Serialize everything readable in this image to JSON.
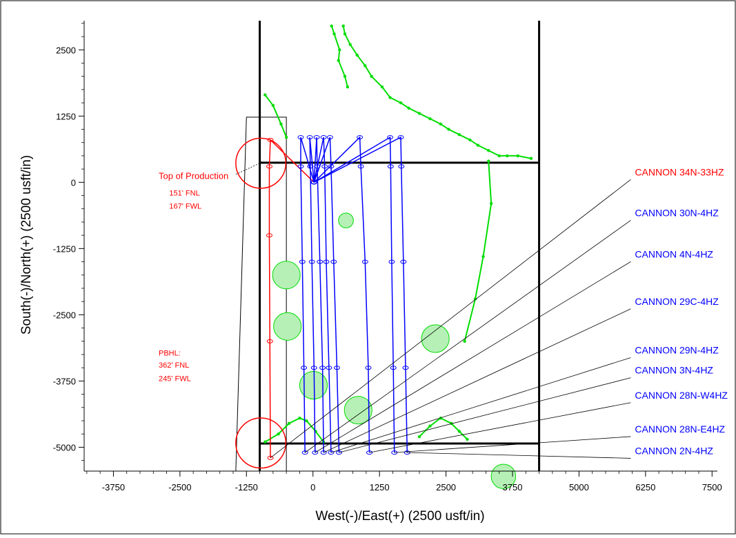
{
  "chart_data": {
    "type": "scatter",
    "title": "",
    "xlabel": "West(-)/East(+) (2500 usft/in)",
    "ylabel": "South(-)/North(+) (2500 usft/in)",
    "xlim": [
      -4300,
      7600
    ],
    "ylim": [
      -5450,
      3050
    ],
    "x_ticks": [
      -3750,
      -2500,
      -1250,
      0,
      1250,
      2500,
      3750,
      5000,
      6250,
      7500
    ],
    "y_ticks": [
      2500,
      1250,
      0,
      -1250,
      -2500,
      -3750,
      -5000
    ],
    "x_tick_labels": [
      "-3750",
      "-2500",
      "-1250",
      "0",
      "1250",
      "2500",
      "3750",
      "5000",
      "6250",
      "7500"
    ],
    "y_tick_labels": [
      "2500",
      "1250",
      "0",
      "-1250",
      "-2500",
      "-3750",
      "-5000"
    ],
    "grid": false,
    "colors": {
      "subject": "#ff0000",
      "offset": "#0000ff",
      "other": "#00dd00",
      "boundary": "#000000"
    },
    "section_lines": {
      "vertical": [
        {
          "x": -1000,
          "y": [
            -5450,
            3050
          ]
        },
        {
          "x": 4250,
          "y": [
            -5450,
            3050
          ]
        }
      ],
      "horizontal": [
        {
          "x": [
            -1000,
            4250
          ],
          "y": 370
        },
        {
          "x": [
            -1000,
            4250
          ],
          "y": -4930
        }
      ]
    },
    "lease_outline": [
      [
        -1450,
        -5450
      ],
      [
        -1250,
        1230
      ],
      [
        -500,
        1230
      ],
      [
        -500,
        -5450
      ]
    ],
    "series": [
      {
        "name": "CANNON 34N-33HZ",
        "color": "#ff0000",
        "label_at": [
          6050,
          130
        ],
        "x": [
          20,
          -800,
          -820,
          -820,
          -810,
          -800
        ],
        "y": [
          0,
          800,
          300,
          -1000,
          -3000,
          -5200
        ]
      },
      {
        "name": "CANNON 30N-4HZ",
        "color": "#0000ff",
        "label_at": [
          6050,
          -640
        ],
        "x": [
          20,
          -230,
          -230,
          -200,
          -170,
          -150
        ],
        "y": [
          0,
          850,
          300,
          -1500,
          -3500,
          -5100
        ]
      },
      {
        "name": "CANNON 4N-4HZ",
        "color": "#0000ff",
        "label_at": [
          6050,
          -1420
        ],
        "x": [
          20,
          -60,
          -50,
          -20,
          20,
          40
        ],
        "y": [
          0,
          850,
          300,
          -1500,
          -3500,
          -5100
        ]
      },
      {
        "name": "CANNON 29C-4HZ",
        "color": "#0000ff",
        "label_at": [
          6050,
          -2310
        ],
        "x": [
          20,
          70,
          80,
          130,
          180,
          200
        ],
        "y": [
          0,
          850,
          300,
          -1500,
          -3500,
          -5100
        ]
      },
      {
        "name": "CANNON 29N-4HZ",
        "color": "#0000ff",
        "label_at": [
          6050,
          -3230
        ],
        "x": [
          20,
          200,
          220,
          250,
          300,
          340
        ],
        "y": [
          0,
          850,
          300,
          -1500,
          -3500,
          -5100
        ]
      },
      {
        "name": "CANNON 3N-4HZ",
        "color": "#0000ff",
        "label_at": [
          6050,
          -3610
        ],
        "x": [
          20,
          320,
          340,
          390,
          450,
          490
        ],
        "y": [
          0,
          850,
          300,
          -1500,
          -3500,
          -5100
        ]
      },
      {
        "name": "CANNON 28N-W4HZ",
        "color": "#0000ff",
        "label_at": [
          6050,
          -4080
        ],
        "x": [
          20,
          880,
          900,
          980,
          1040,
          1060
        ],
        "y": [
          0,
          850,
          300,
          -1500,
          -3500,
          -5100
        ]
      },
      {
        "name": "CANNON 28N-E4HZ",
        "color": "#0000ff",
        "label_at": [
          6050,
          -4720
        ],
        "x": [
          20,
          1450,
          1460,
          1480,
          1510,
          1530
        ],
        "y": [
          0,
          850,
          300,
          -1500,
          -3500,
          -5100
        ]
      },
      {
        "name": "CANNON 2N-4HZ",
        "color": "#0000ff",
        "label_at": [
          6050,
          -5130
        ],
        "x": [
          20,
          1650,
          1660,
          1700,
          1740,
          1770
        ],
        "y": [
          0,
          850,
          300,
          -1500,
          -3500,
          -5100
        ]
      }
    ],
    "offset_wells": [
      {
        "x": [
          350,
          400,
          500,
          480,
          600,
          650
        ],
        "y": [
          2950,
          2800,
          2500,
          2300,
          2000,
          1800
        ]
      },
      {
        "x": [
          570,
          600,
          700,
          830,
          980,
          1100,
          1300,
          1450,
          1650,
          1800,
          2000,
          2200,
          2400,
          2550,
          2750,
          2950,
          3100,
          3300,
          3500,
          3650,
          3850,
          4100
        ],
        "y": [
          2950,
          2800,
          2600,
          2400,
          2200,
          2000,
          1800,
          1600,
          1500,
          1400,
          1300,
          1200,
          1100,
          1000,
          900,
          800,
          700,
          600,
          500,
          500,
          500,
          450
        ]
      },
      {
        "x": [
          -900,
          -750,
          -600,
          -500
        ],
        "y": [
          1650,
          1450,
          1100,
          850
        ]
      },
      {
        "x": [
          3300,
          3350,
          3200,
          3050,
          2850
        ],
        "y": [
          400,
          -400,
          -1400,
          -2200,
          -3000
        ]
      },
      {
        "x": [
          -900,
          -650,
          -450,
          -250,
          -120,
          50,
          200
        ],
        "y": [
          -4900,
          -4750,
          -4550,
          -4450,
          -4500,
          -4700,
          -4900
        ]
      },
      {
        "x": [
          2000,
          2200,
          2400,
          2600,
          2750,
          2900
        ],
        "y": [
          -4800,
          -4600,
          -4450,
          -4550,
          -4700,
          -4850
        ]
      }
    ],
    "anti_collision_circles": [
      {
        "x": -500,
        "y": -1750,
        "r": 260
      },
      {
        "x": -480,
        "y": -2720,
        "r": 260
      },
      {
        "x": 850,
        "y": -4300,
        "r": 260
      },
      {
        "x": 10,
        "y": -3830,
        "r": 260
      },
      {
        "x": 2300,
        "y": -2950,
        "r": 260
      },
      {
        "x": 620,
        "y": -720,
        "r": 140
      },
      {
        "x": 3580,
        "y": -5550,
        "r": 230
      }
    ],
    "red_markers": [
      {
        "x": -980,
        "y": 360,
        "r": 470
      },
      {
        "x": -980,
        "y": -4920,
        "r": 470
      }
    ],
    "annotations": [
      {
        "text": "Top of Production",
        "at": [
          -2900,
          60
        ],
        "color": "#ff0000"
      },
      {
        "text": "151' FNL",
        "at": [
          -2700,
          -250
        ],
        "color": "#ff0000"
      },
      {
        "text": "167' FWL",
        "at": [
          -2700,
          -500
        ],
        "color": "#ff0000"
      },
      {
        "text": "PBHL:",
        "at": [
          -2900,
          -3270
        ],
        "color": "#ff0000"
      },
      {
        "text": "362' FNL",
        "at": [
          -2900,
          -3500
        ],
        "color": "#ff0000"
      },
      {
        "text": "245' FWL",
        "at": [
          -2900,
          -3750
        ],
        "color": "#ff0000"
      }
    ]
  }
}
